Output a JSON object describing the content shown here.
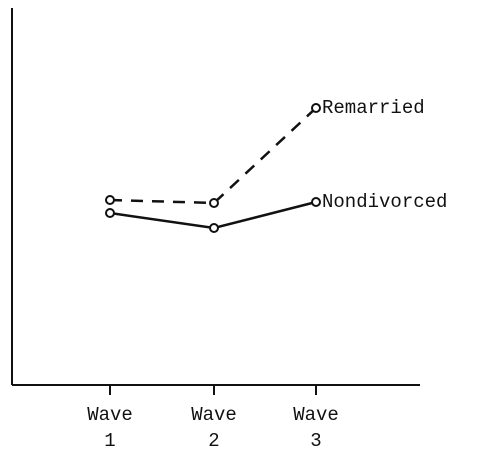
{
  "chart_data": {
    "type": "line",
    "categories": [
      "Wave 1",
      "Wave 2",
      "Wave 3"
    ],
    "series": [
      {
        "name": "Remarried",
        "color": "#111111",
        "dash": true,
        "values": [
          185,
          182,
          277
        ]
      },
      {
        "name": "Nondivorced",
        "color": "#111111",
        "dash": false,
        "values": [
          172,
          157,
          183
        ]
      }
    ],
    "ylim": [
      0,
      385
    ]
  }
}
